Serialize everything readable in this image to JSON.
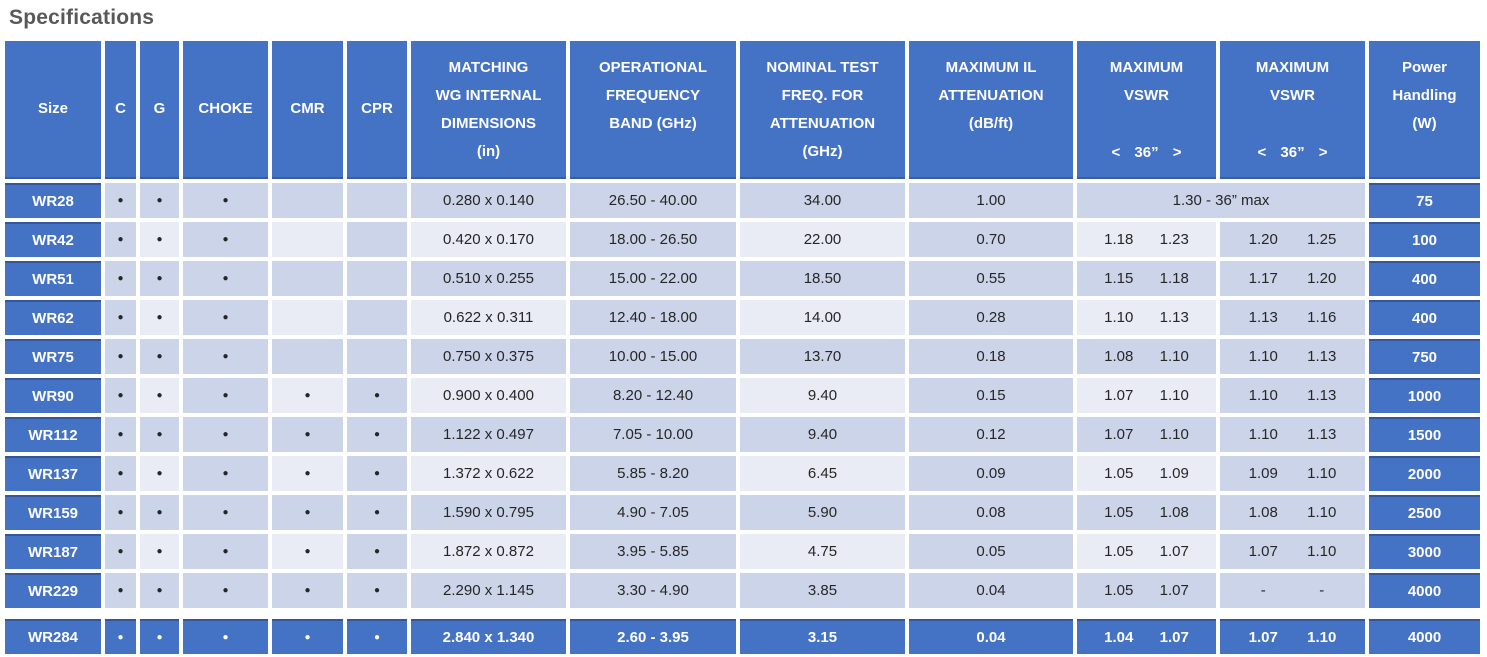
{
  "title": "Specifications",
  "colors": {
    "header_blue": "#4472C4",
    "cell_medium": "#CCD4E9",
    "cell_light": "#E9EBF5",
    "title_gray": "#595959",
    "text_dark": "#262626"
  },
  "table": {
    "dot": "●",
    "columns": [
      {
        "label": "Size"
      },
      {
        "label": "C"
      },
      {
        "label": "G"
      },
      {
        "label": "CHOKE"
      },
      {
        "label": "CMR"
      },
      {
        "label": "CPR"
      },
      {
        "lines": [
          "MATCHING",
          "WG INTERNAL",
          "DIMENSIONS",
          "(in)"
        ]
      },
      {
        "lines": [
          "OPERATIONAL",
          "FREQUENCY",
          "BAND (GHz)"
        ]
      },
      {
        "lines": [
          "NOMINAL TEST",
          "FREQ. FOR",
          "ATTENUATION",
          "(GHz)"
        ]
      },
      {
        "lines": [
          "MAXIMUM IL",
          "ATTENUATION",
          "(dB/ft)"
        ]
      },
      {
        "lines": [
          "MAXIMUM",
          "VSWR"
        ],
        "range": "< 36” >"
      },
      {
        "lines": [
          "MAXIMUM",
          "VSWR"
        ],
        "range": "< 36” >"
      },
      {
        "lines": [
          "Power",
          "Handling",
          "(W)"
        ]
      }
    ],
    "rows": [
      {
        "size": "WR28",
        "c": "●",
        "g": "●",
        "choke": "●",
        "cmr": "",
        "cpr": "",
        "dims": "0.280 x 0.140",
        "band": "26.50 - 40.00",
        "test": "34.00",
        "il": "1.00",
        "vswr_merged": "1.30 - 36” max",
        "power": "75",
        "highlight": false
      },
      {
        "size": "WR42",
        "c": "●",
        "g": "●",
        "choke": "●",
        "cmr": "",
        "cpr": "",
        "dims": "0.420 x 0.170",
        "band": "18.00 - 26.50",
        "test": "22.00",
        "il": "0.70",
        "vswr1": [
          "1.18",
          "1.23"
        ],
        "vswr2": [
          "1.20",
          "1.25"
        ],
        "power": "100",
        "highlight": false
      },
      {
        "size": "WR51",
        "c": "●",
        "g": "●",
        "choke": "●",
        "cmr": "",
        "cpr": "",
        "dims": "0.510 x 0.255",
        "band": "15.00 - 22.00",
        "test": "18.50",
        "il": "0.55",
        "vswr1": [
          "1.15",
          "1.18"
        ],
        "vswr2": [
          "1.17",
          "1.20"
        ],
        "power": "400",
        "highlight": false
      },
      {
        "size": "WR62",
        "c": "●",
        "g": "●",
        "choke": "●",
        "cmr": "",
        "cpr": "",
        "dims": "0.622 x 0.311",
        "band": "12.40 - 18.00",
        "test": "14.00",
        "il": "0.28",
        "vswr1": [
          "1.10",
          "1.13"
        ],
        "vswr2": [
          "1.13",
          "1.16"
        ],
        "power": "400",
        "highlight": false
      },
      {
        "size": "WR75",
        "c": "●",
        "g": "●",
        "choke": "●",
        "cmr": "",
        "cpr": "",
        "dims": "0.750 x 0.375",
        "band": "10.00 - 15.00",
        "test": "13.70",
        "il": "0.18",
        "vswr1": [
          "1.08",
          "1.10"
        ],
        "vswr2": [
          "1.10",
          "1.13"
        ],
        "power": "750",
        "highlight": false
      },
      {
        "size": "WR90",
        "c": "●",
        "g": "●",
        "choke": "●",
        "cmr": "●",
        "cpr": "●",
        "dims": "0.900 x 0.400",
        "band": "8.20 - 12.40",
        "test": "9.40",
        "il": "0.15",
        "vswr1": [
          "1.07",
          "1.10"
        ],
        "vswr2": [
          "1.10",
          "1.13"
        ],
        "power": "1000",
        "highlight": false
      },
      {
        "size": "WR112",
        "c": "●",
        "g": "●",
        "choke": "●",
        "cmr": "●",
        "cpr": "●",
        "dims": "1.122 x 0.497",
        "band": "7.05 - 10.00",
        "test": "9.40",
        "il": "0.12",
        "vswr1": [
          "1.07",
          "1.10"
        ],
        "vswr2": [
          "1.10",
          "1.13"
        ],
        "power": "1500",
        "highlight": false
      },
      {
        "size": "WR137",
        "c": "●",
        "g": "●",
        "choke": "●",
        "cmr": "●",
        "cpr": "●",
        "dims": "1.372 x 0.622",
        "band": "5.85 - 8.20",
        "test": "6.45",
        "il": "0.09",
        "vswr1": [
          "1.05",
          "1.09"
        ],
        "vswr2": [
          "1.09",
          "1.10"
        ],
        "power": "2000",
        "highlight": false
      },
      {
        "size": "WR159",
        "c": "●",
        "g": "●",
        "choke": "●",
        "cmr": "●",
        "cpr": "●",
        "dims": "1.590 x 0.795",
        "band": "4.90 - 7.05",
        "test": "5.90",
        "il": "0.08",
        "vswr1": [
          "1.05",
          "1.08"
        ],
        "vswr2": [
          "1.08",
          "1.10"
        ],
        "power": "2500",
        "highlight": false
      },
      {
        "size": "WR187",
        "c": "●",
        "g": "●",
        "choke": "●",
        "cmr": "●",
        "cpr": "●",
        "dims": "1.872 x 0.872",
        "band": "3.95 - 5.85",
        "test": "4.75",
        "il": "0.05",
        "vswr1": [
          "1.05",
          "1.07"
        ],
        "vswr2": [
          "1.07",
          "1.10"
        ],
        "power": "3000",
        "highlight": false
      },
      {
        "size": "WR229",
        "c": "●",
        "g": "●",
        "choke": "●",
        "cmr": "●",
        "cpr": "●",
        "dims": "2.290 x 1.145",
        "band": "3.30 - 4.90",
        "test": "3.85",
        "il": "0.04",
        "vswr1": [
          "1.05",
          "1.07"
        ],
        "vswr2": [
          "-",
          "-"
        ],
        "power": "4000",
        "highlight": false
      },
      {
        "size": "WR284",
        "c": "●",
        "g": "●",
        "choke": "●",
        "cmr": "●",
        "cpr": "●",
        "dims": "2.840 x 1.340",
        "band": "2.60 - 3.95",
        "test": "3.15",
        "il": "0.04",
        "vswr1": [
          "1.04",
          "1.07"
        ],
        "vswr2": [
          "1.07",
          "1.10"
        ],
        "power": "4000",
        "highlight": true
      }
    ]
  }
}
